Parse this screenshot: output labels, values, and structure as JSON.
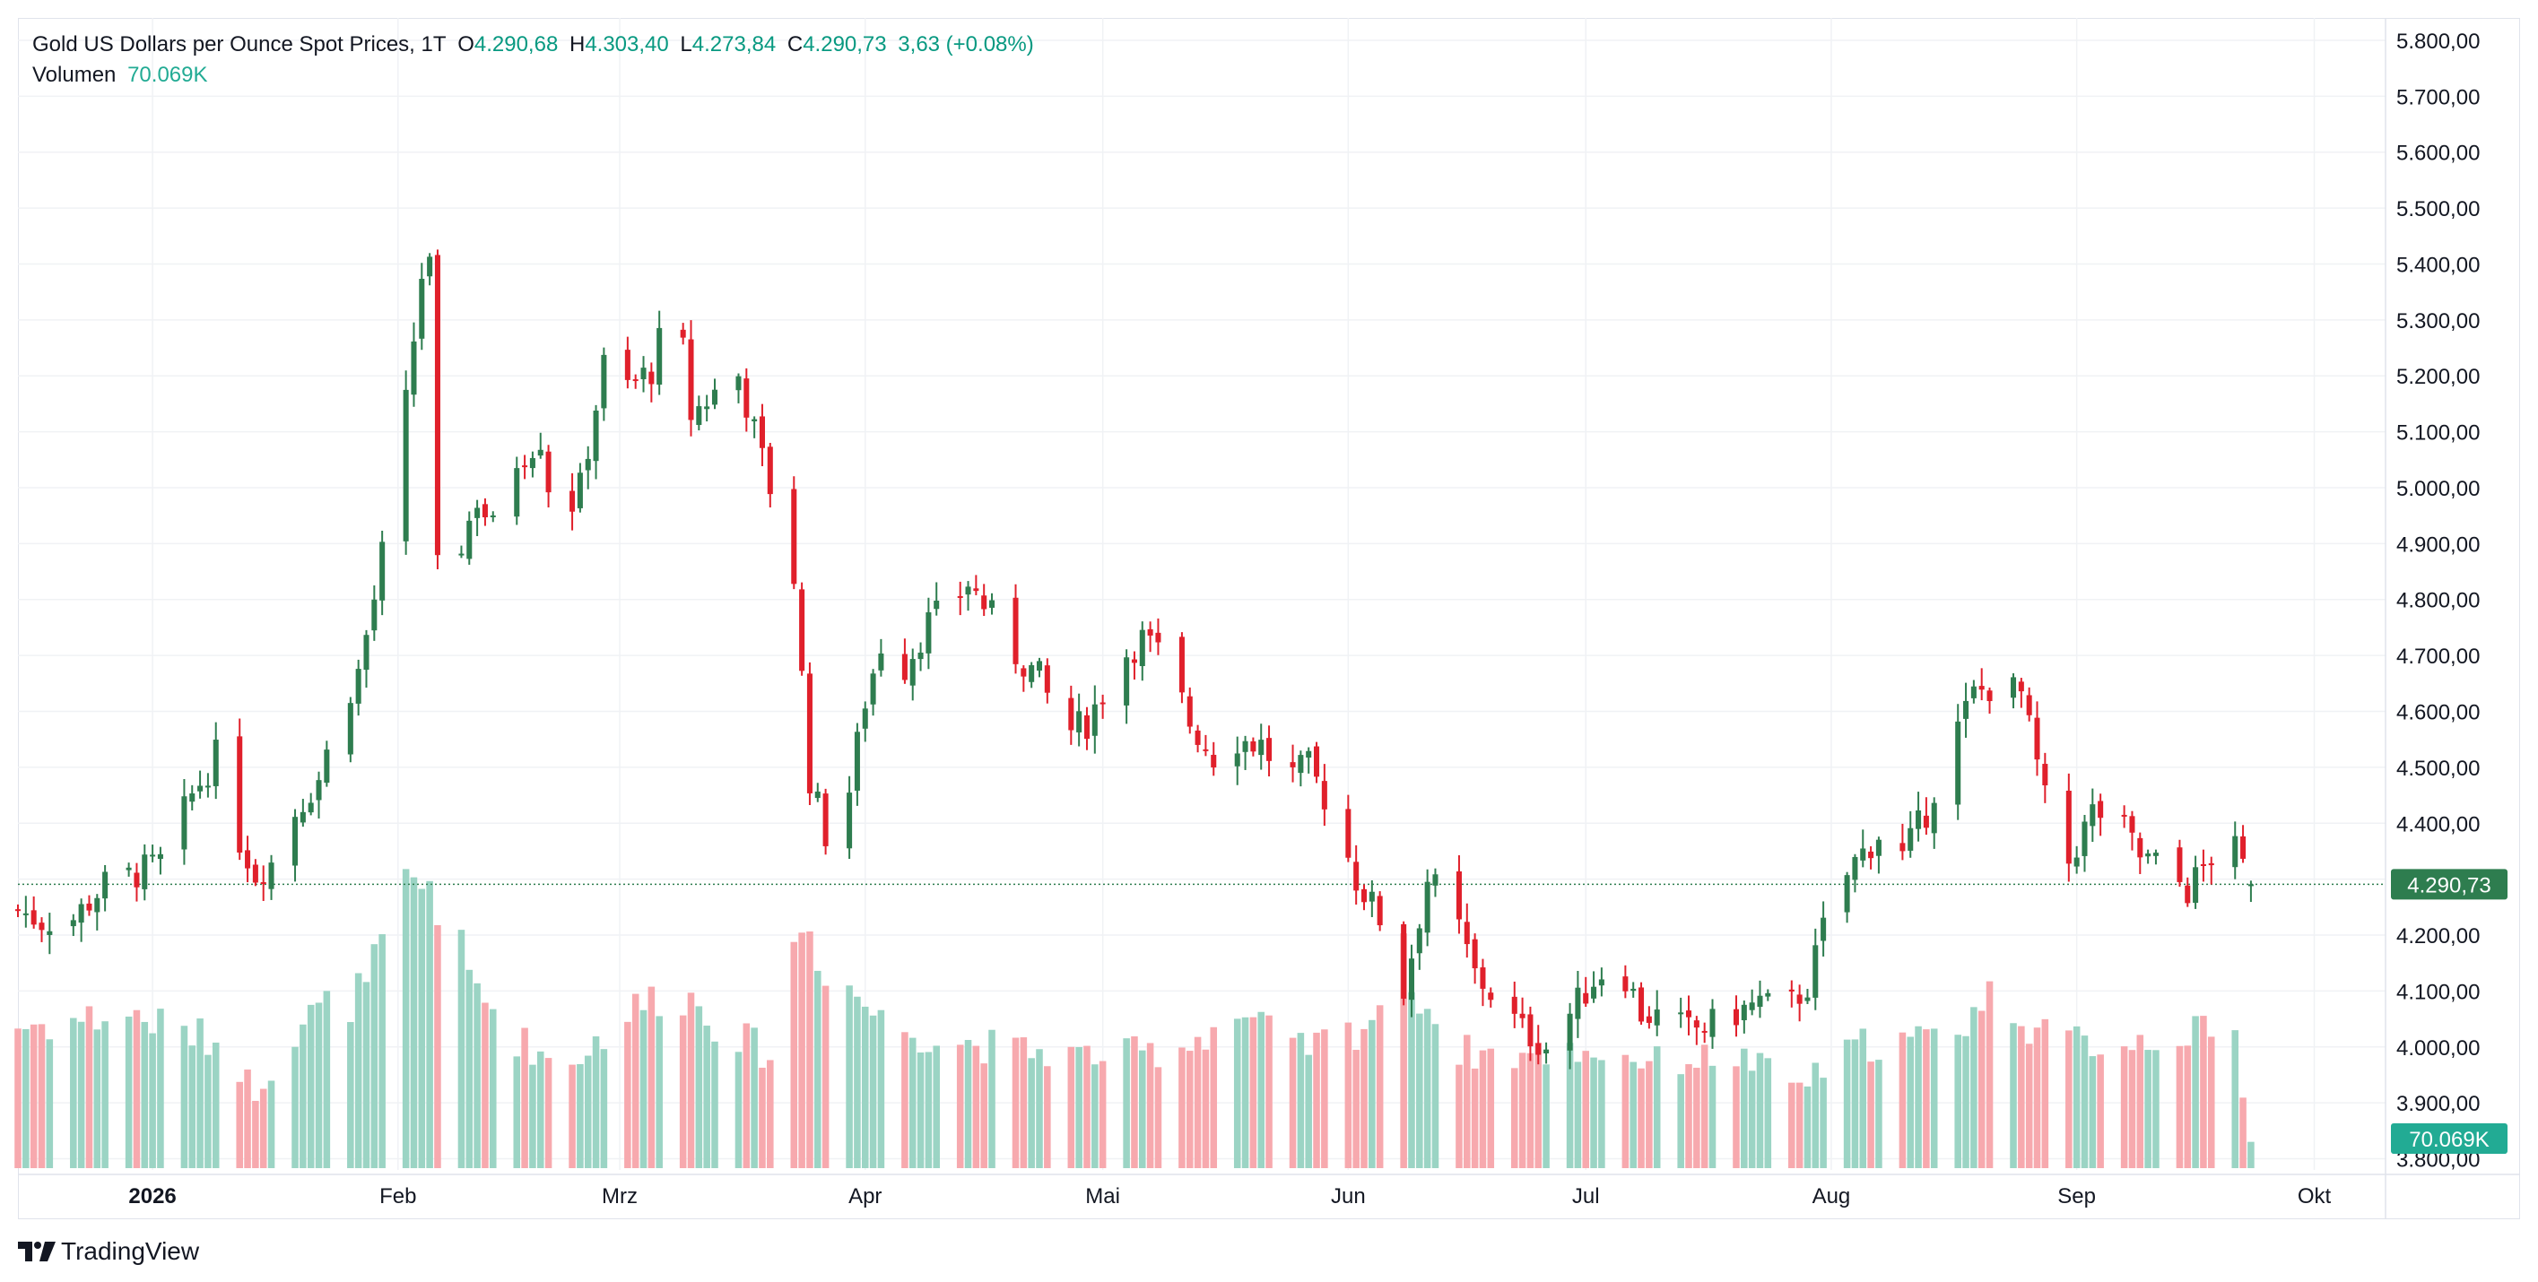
{
  "legend": {
    "symbol": "Gold US Dollars per Ounce Spot Prices, 1T",
    "o_label": "O",
    "o_value": "4.290,68",
    "h_label": "H",
    "h_value": "4.303,40",
    "l_label": "L",
    "l_value": "4.273,84",
    "c_label": "C",
    "c_value": "4.290,73",
    "change": "3,63 (+0.08%)",
    "volume_label": "Volumen",
    "volume_value": "70.069K"
  },
  "badges": {
    "last_price": "4.290,73",
    "last_volume": "70.069K"
  },
  "branding": {
    "name": "TradingView"
  },
  "colors": {
    "up": "#2e7d4f",
    "down": "#e0202b",
    "volume_up": "#9bd4c4",
    "volume_down": "#f7a9ae",
    "last_price_badge": "#2e7d4f",
    "volume_badge": "#22ab94"
  },
  "chart_data": {
    "type": "candlestick",
    "title": "Gold US Dollars per Ounce Spot Prices, 1T",
    "y_axis": {
      "ticks": [
        "3.800,00",
        "3.900,00",
        "4.000,00",
        "4.100,00",
        "4.200,00",
        "4.300,00",
        "4.400,00",
        "4.500,00",
        "4.600,00",
        "4.700,00",
        "4.800,00",
        "4.900,00",
        "5.000,00",
        "5.100,00",
        "5.200,00",
        "5.300,00",
        "5.400,00",
        "5.500,00",
        "5.600,00",
        "5.700,00",
        "5.800,00"
      ],
      "range": [
        3780,
        5840
      ]
    },
    "x_axis": {
      "labels": [
        {
          "text": "2026",
          "date": "2026-01-01",
          "bold": true
        },
        {
          "text": "Feb",
          "date": "2026-02-01"
        },
        {
          "text": "Mrz",
          "date": "2026-03-01"
        },
        {
          "text": "Apr",
          "date": "2026-04-01"
        },
        {
          "text": "Mai",
          "date": "2026-05-01"
        },
        {
          "text": "Jun",
          "date": "2026-06-01"
        },
        {
          "text": "Jul",
          "date": "2026-07-01"
        },
        {
          "text": "Aug",
          "date": "2026-08-01"
        },
        {
          "text": "Sep",
          "date": "2026-09-01"
        },
        {
          "text": "Okt",
          "date": "2026-10-01"
        }
      ],
      "range": [
        "2025-12-15",
        "2026-10-10"
      ]
    },
    "last_price": 4290.73,
    "grid": true,
    "waypoints": [
      [
        "2025-12-15",
        4245
      ],
      [
        "2025-12-18",
        4225
      ],
      [
        "2025-12-22",
        4230
      ],
      [
        "2025-12-26",
        4290
      ],
      [
        "2025-12-30",
        4310
      ],
      [
        "2026-01-02",
        4330
      ],
      [
        "2026-01-06",
        4450
      ],
      [
        "2026-01-09",
        4520
      ],
      [
        "2026-01-12",
        4370
      ],
      [
        "2026-01-14",
        4310
      ],
      [
        "2026-01-16",
        4330
      ],
      [
        "2026-01-19",
        4420
      ],
      [
        "2026-01-22",
        4480
      ],
      [
        "2026-01-25",
        4610
      ],
      [
        "2026-01-27",
        4670
      ],
      [
        "2026-01-29",
        4800
      ],
      [
        "2026-01-31",
        4960
      ],
      [
        "2026-02-02",
        5150
      ],
      [
        "2026-02-04",
        5380
      ],
      [
        "2026-02-05",
        5390
      ],
      [
        "2026-02-06",
        4850
      ],
      [
        "2026-02-07",
        4650
      ],
      [
        "2026-02-09",
        4900
      ],
      [
        "2026-02-11",
        4980
      ],
      [
        "2026-02-14",
        4900
      ],
      [
        "2026-02-16",
        5050
      ],
      [
        "2026-02-19",
        5090
      ],
      [
        "2026-02-21",
        4920
      ],
      [
        "2026-02-24",
        5000
      ],
      [
        "2026-02-27",
        5220
      ],
      [
        "2026-03-02",
        5180
      ],
      [
        "2026-03-05",
        5210
      ],
      [
        "2026-03-08",
        5360
      ],
      [
        "2026-03-10",
        5130
      ],
      [
        "2026-03-13",
        5170
      ],
      [
        "2026-03-16",
        5200
      ],
      [
        "2026-03-18",
        5100
      ],
      [
        "2026-03-20",
        5000
      ],
      [
        "2026-03-23",
        4840
      ],
      [
        "2026-03-25",
        4480
      ],
      [
        "2026-03-27",
        4380
      ],
      [
        "2026-03-30",
        4460
      ],
      [
        "2026-04-01",
        4620
      ],
      [
        "2026-04-03",
        4720
      ],
      [
        "2026-04-06",
        4680
      ],
      [
        "2026-04-09",
        4760
      ],
      [
        "2026-04-12",
        4790
      ],
      [
        "2026-04-14",
        4830
      ],
      [
        "2026-04-17",
        4770
      ],
      [
        "2026-04-20",
        4700
      ],
      [
        "2026-04-23",
        4660
      ],
      [
        "2026-04-26",
        4560
      ],
      [
        "2026-04-29",
        4580
      ],
      [
        "2026-05-03",
        4690
      ],
      [
        "2026-05-06",
        4730
      ],
      [
        "2026-05-09",
        4690
      ],
      [
        "2026-05-12",
        4580
      ],
      [
        "2026-05-15",
        4520
      ],
      [
        "2026-05-18",
        4550
      ],
      [
        "2026-05-21",
        4540
      ],
      [
        "2026-05-24",
        4480
      ],
      [
        "2026-05-27",
        4500
      ],
      [
        "2026-05-30",
        4420
      ],
      [
        "2026-06-02",
        4300
      ],
      [
        "2026-06-05",
        4230
      ],
      [
        "2026-06-08",
        4100
      ],
      [
        "2026-06-11",
        4300
      ],
      [
        "2026-06-14",
        4250
      ],
      [
        "2026-06-17",
        4130
      ],
      [
        "2026-06-20",
        4080
      ],
      [
        "2026-06-23",
        4030
      ],
      [
        "2026-06-26",
        4000
      ],
      [
        "2026-06-29",
        4060
      ],
      [
        "2026-07-02",
        4120
      ],
      [
        "2026-07-05",
        4160
      ],
      [
        "2026-07-08",
        4060
      ],
      [
        "2026-07-11",
        4050
      ],
      [
        "2026-07-14",
        4030
      ],
      [
        "2026-07-17",
        4040
      ],
      [
        "2026-07-20",
        4060
      ],
      [
        "2026-07-23",
        4080
      ],
      [
        "2026-07-26",
        4060
      ],
      [
        "2026-07-29",
        4110
      ],
      [
        "2026-08-01",
        4260
      ],
      [
        "2026-08-04",
        4330
      ],
      [
        "2026-08-07",
        4380
      ],
      [
        "2026-08-10",
        4340
      ],
      [
        "2026-08-13",
        4420
      ],
      [
        "2026-08-16",
        4540
      ],
      [
        "2026-08-19",
        4630
      ],
      [
        "2026-08-22",
        4650
      ],
      [
        "2026-08-25",
        4630
      ],
      [
        "2026-08-28",
        4440
      ],
      [
        "2026-08-31",
        4330
      ],
      [
        "2026-09-03",
        4420
      ],
      [
        "2026-09-06",
        4410
      ],
      [
        "2026-09-09",
        4340
      ],
      [
        "2026-09-12",
        4320
      ],
      [
        "2026-09-15",
        4280
      ],
      [
        "2026-09-18",
        4340
      ],
      [
        "2026-09-21",
        4350
      ],
      [
        "2026-09-23",
        4291
      ]
    ],
    "volume_waypoints": [
      [
        "2025-12-15",
        48
      ],
      [
        "2025-12-29",
        52
      ],
      [
        "2026-01-10",
        42
      ],
      [
        "2026-01-14",
        26
      ],
      [
        "2026-01-20",
        50
      ],
      [
        "2026-01-28",
        60
      ],
      [
        "2026-02-02",
        92
      ],
      [
        "2026-02-05",
        98
      ],
      [
        "2026-02-10",
        64
      ],
      [
        "2026-02-16",
        44
      ],
      [
        "2026-02-22",
        34
      ],
      [
        "2026-03-02",
        52
      ],
      [
        "2026-03-08",
        62
      ],
      [
        "2026-03-14",
        48
      ],
      [
        "2026-03-20",
        38
      ],
      [
        "2026-03-24",
        84
      ],
      [
        "2026-03-27",
        70
      ],
      [
        "2026-04-03",
        50
      ],
      [
        "2026-04-10",
        44
      ],
      [
        "2026-04-20",
        40
      ],
      [
        "2026-05-01",
        38
      ],
      [
        "2026-05-10",
        40
      ],
      [
        "2026-05-18",
        52
      ],
      [
        "2026-05-26",
        40
      ],
      [
        "2026-06-03",
        48
      ],
      [
        "2026-06-08",
        70
      ],
      [
        "2026-06-14",
        40
      ],
      [
        "2026-06-22",
        38
      ],
      [
        "2026-07-01",
        40
      ],
      [
        "2026-07-10",
        36
      ],
      [
        "2026-07-20",
        38
      ],
      [
        "2026-07-28",
        28
      ],
      [
        "2026-08-05",
        42
      ],
      [
        "2026-08-15",
        44
      ],
      [
        "2026-08-22",
        60
      ],
      [
        "2026-08-28",
        44
      ],
      [
        "2026-09-05",
        42
      ],
      [
        "2026-09-14",
        46
      ],
      [
        "2026-09-21",
        44
      ],
      [
        "2026-09-23",
        10
      ]
    ],
    "volume_last": 70.069
  }
}
